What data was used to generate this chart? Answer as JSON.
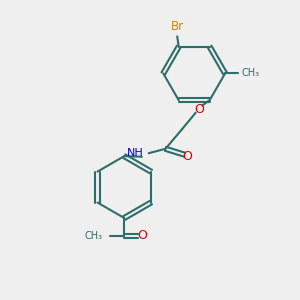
{
  "bg_color": "#efefef",
  "bond_color": "#2d6e6a",
  "br_color": "#cc8800",
  "o_color": "#dd0000",
  "n_color": "#0000cc",
  "lw": 1.5,
  "dbo": 0.07,
  "figsize": [
    3.0,
    3.0
  ],
  "dpi": 100,
  "xlim": [
    0,
    10
  ],
  "ylim": [
    0,
    10
  ]
}
